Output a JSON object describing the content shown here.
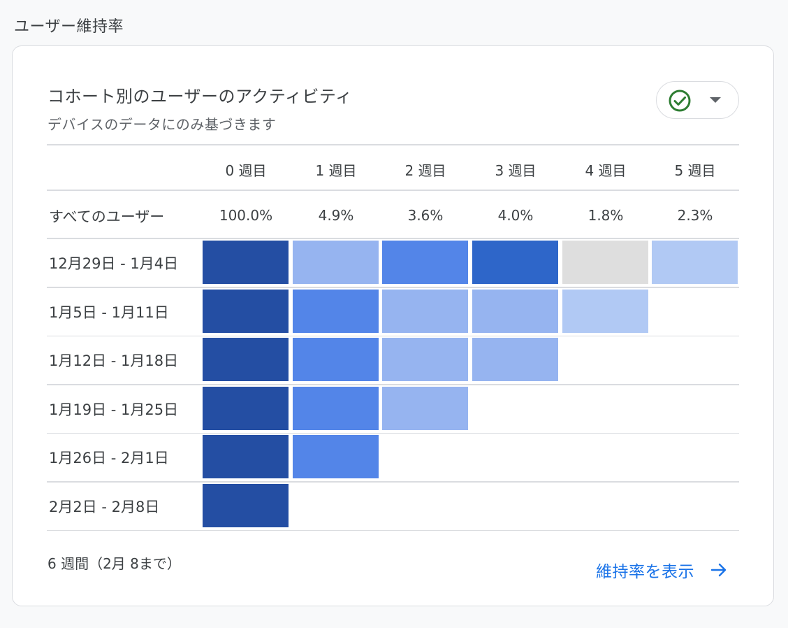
{
  "section": {
    "title": "ユーザー維持率"
  },
  "card": {
    "title": "コホート別のユーザーのアクティビティ",
    "subtitle": "デバイスのデータにのみ基づきます",
    "status_icon": "check-circle-icon",
    "dropdown_icon": "caret-down-icon"
  },
  "table": {
    "columns": [
      "0 週目",
      "1 週目",
      "2 週目",
      "3 週目",
      "4 週目",
      "5 週目"
    ],
    "all_users": {
      "label": "すべてのユーザー",
      "values": [
        "100.0%",
        "4.9%",
        "3.6%",
        "4.0%",
        "1.8%",
        "2.3%"
      ]
    },
    "rows": [
      {
        "label": "12月29日 - 1月4日",
        "levels": [
          5,
          2,
          3,
          4,
          0,
          1
        ]
      },
      {
        "label": "1月5日 - 1月11日",
        "levels": [
          5,
          3,
          2,
          2,
          1
        ]
      },
      {
        "label": "1月12日 - 1月18日",
        "levels": [
          5,
          3,
          2,
          2
        ]
      },
      {
        "label": "1月19日 - 1月25日",
        "levels": [
          5,
          3,
          2
        ]
      },
      {
        "label": "1月26日 - 2月1日",
        "levels": [
          5,
          3
        ]
      },
      {
        "label": "2月2日 - 2月8日",
        "levels": [
          5
        ]
      }
    ]
  },
  "colors": {
    "level_0": "#dedede",
    "level_1": "#b1c9f4",
    "level_2": "#96b4f0",
    "level_3": "#5385e8",
    "level_4": "#2e66c9",
    "level_5": "#244ea3",
    "accent": "#1a73e8",
    "check": "#2e7d32"
  },
  "footer": {
    "note": "6 週間（2月 8まで）",
    "link_label": "維持率を表示",
    "link_icon": "arrow-right-icon"
  }
}
